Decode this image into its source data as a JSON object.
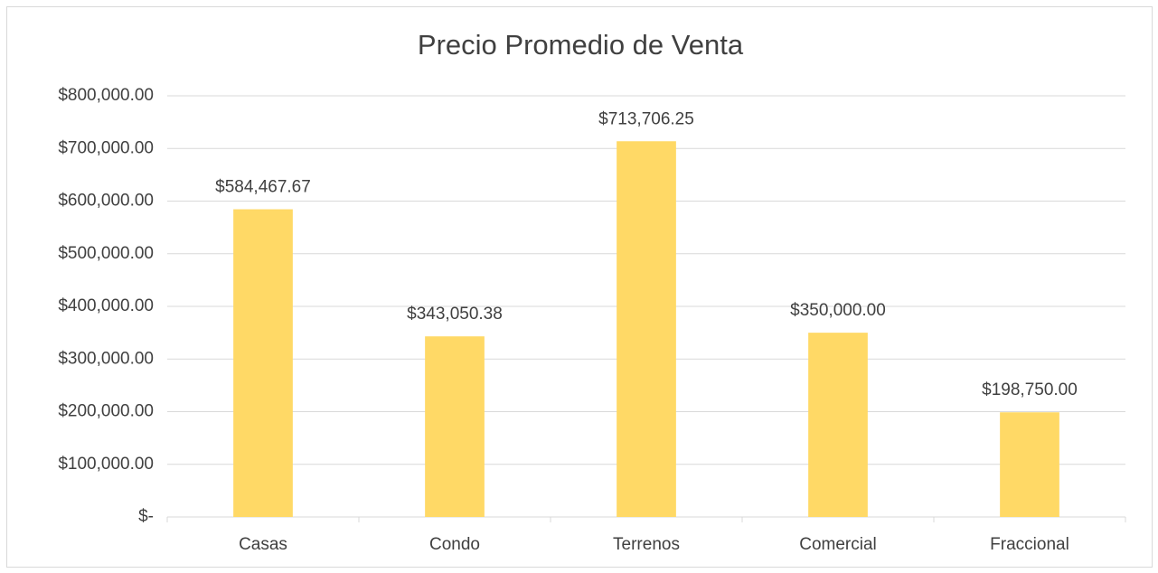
{
  "chart_data": {
    "type": "bar",
    "title": "Precio Promedio de Venta",
    "categories": [
      "Casas",
      "Condo",
      "Terrenos",
      "Comercial",
      "Fraccional"
    ],
    "values": [
      584467.67,
      343050.38,
      713706.25,
      350000,
      198750
    ],
    "value_labels": [
      "$584,467.67",
      "$343,050.38",
      "$713,706.25",
      "$350,000.00",
      "$198,750.00"
    ],
    "color": "#ffd966",
    "ylim": [
      0,
      800000
    ],
    "yticks": [
      {
        "value": 0,
        "label": "$-"
      },
      {
        "value": 100000,
        "label": "$100,000.00"
      },
      {
        "value": 200000,
        "label": "$200,000.00"
      },
      {
        "value": 300000,
        "label": "$300,000.00"
      },
      {
        "value": 400000,
        "label": "$400,000.00"
      },
      {
        "value": 500000,
        "label": "$500,000.00"
      },
      {
        "value": 600000,
        "label": "$600,000.00"
      },
      {
        "value": 700000,
        "label": "$700,000.00"
      },
      {
        "value": 800000,
        "label": "$800,000.00"
      }
    ],
    "grid": true
  }
}
